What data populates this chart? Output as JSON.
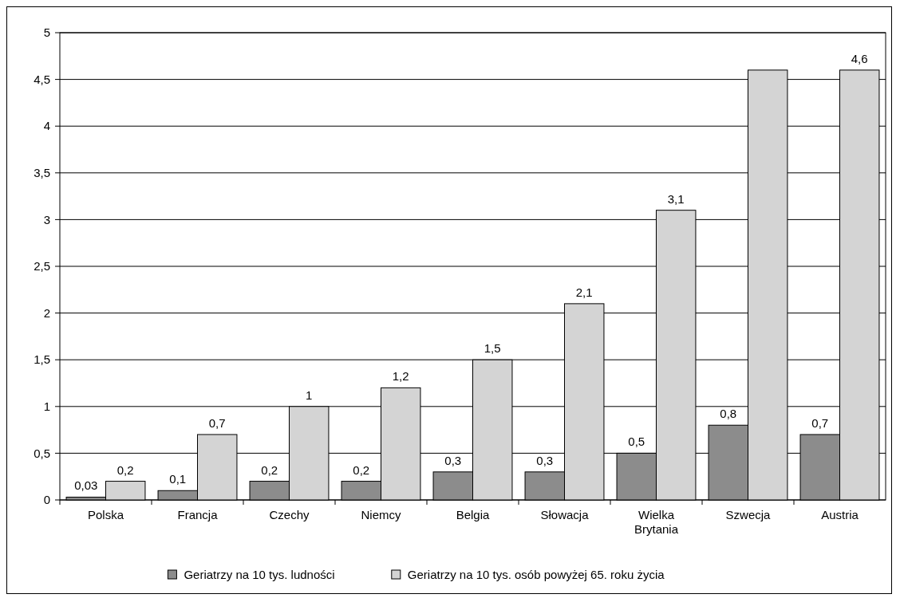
{
  "chart_data": {
    "type": "bar",
    "categories": [
      "Polska",
      "Francja",
      "Czechy",
      "Niemcy",
      "Belgia",
      "Słowacja",
      "Wielka Brytania",
      "Szwecja",
      "Austria"
    ],
    "series": [
      {
        "name": "Geriatrzy na 10 tys. ludności",
        "color": "#8c8c8c",
        "values": [
          0.03,
          0.1,
          0.2,
          0.2,
          0.3,
          0.3,
          0.5,
          0.8,
          0.7
        ],
        "value_labels": [
          "0,03",
          "0,1",
          "0,2",
          "0,2",
          "0,3",
          "0,3",
          "0,5",
          "0,8",
          "0,7"
        ]
      },
      {
        "name": "Geriatrzy na 10 tys. osób powyżej 65. roku życia",
        "color": "#d4d4d4",
        "values": [
          0.2,
          0.7,
          1,
          1.2,
          1.5,
          2.1,
          3.1,
          4.6,
          4.6
        ],
        "value_labels": [
          "0,2",
          "0,7",
          "1",
          "1,2",
          "1,5",
          "2,1",
          "3,1",
          null,
          "4,6"
        ]
      }
    ],
    "ylim": [
      0,
      5
    ],
    "yticks": [
      0,
      {
        "value": 0.5,
        "label": "0,5"
      },
      1,
      {
        "value": 1.5,
        "label": "1,5"
      },
      2,
      {
        "value": 2.5,
        "label": "2,5"
      },
      3,
      {
        "value": 3.5,
        "label": "3,5"
      },
      4,
      {
        "value": 4.5,
        "label": "4,5"
      },
      5
    ],
    "grid": "y",
    "legend": "bottom"
  }
}
